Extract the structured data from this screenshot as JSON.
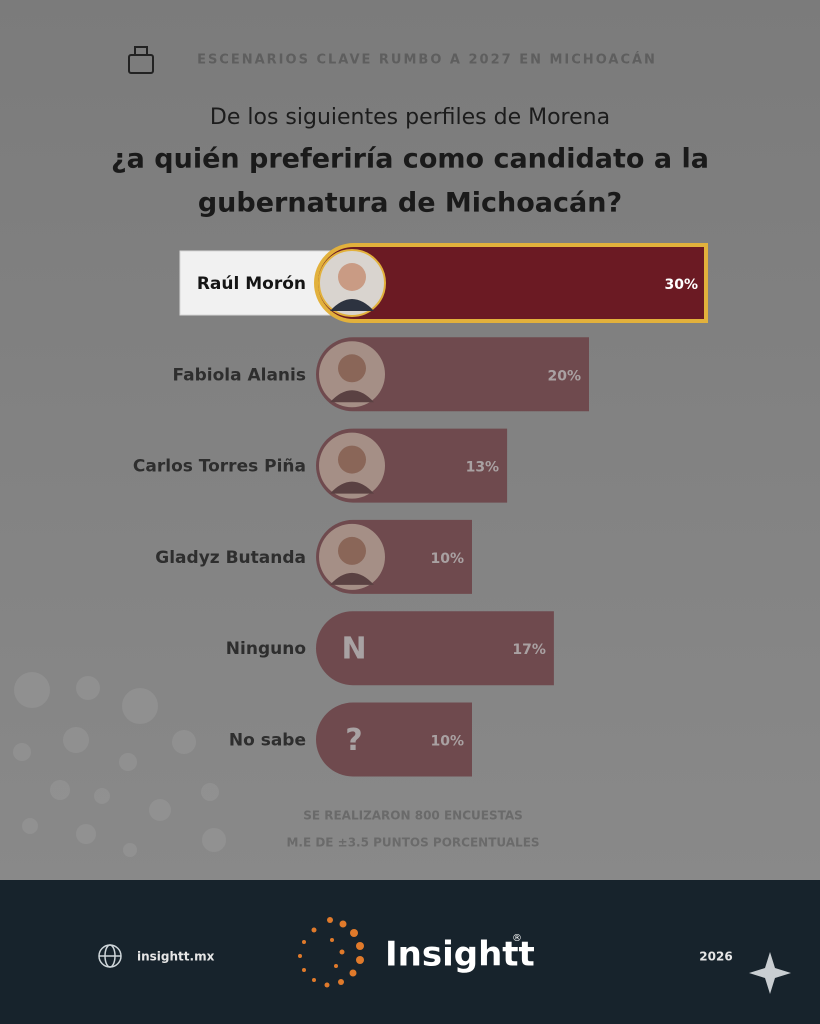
{
  "header": "ESCENARIOS CLAVE RUMBO A 2027 EN MICHOACÁN",
  "chart_data": {
    "type": "bar",
    "orientation": "horizontal",
    "subtitle": "De los siguientes perfiles de Morena",
    "title": [
      "¿a quién preferiría como candidato a la",
      "gubernatura de Michoacán?"
    ],
    "categories": [
      "Raúl Morón",
      "Fabiola Alanis",
      "Carlos Torres Piña",
      "Gladyz Butanda",
      "Ninguno",
      "No sabe"
    ],
    "values": [
      30,
      20,
      13,
      10,
      17,
      10
    ],
    "value_labels": [
      "30%",
      "20%",
      "13%",
      "10%",
      "17%",
      "10%"
    ],
    "bar_icons": [
      null,
      null,
      null,
      null,
      "N",
      "?"
    ],
    "colors": [
      "#6b1a23",
      "#6f4a4e",
      "#6f4a4e",
      "#6f4a4e",
      "#6f4a4e",
      "#6f4a4e"
    ],
    "highlight_border": "#e2b13c",
    "xlim": [
      0,
      30
    ],
    "notes": [
      "SE REALIZARON 800 ENCUESTAS",
      "M.E DE ±3.5 PUNTOS PORCENTUALES"
    ]
  },
  "footer": {
    "website": "insightt.mx",
    "brand": "Insightt",
    "brand_mark": "®",
    "year": "2026"
  }
}
